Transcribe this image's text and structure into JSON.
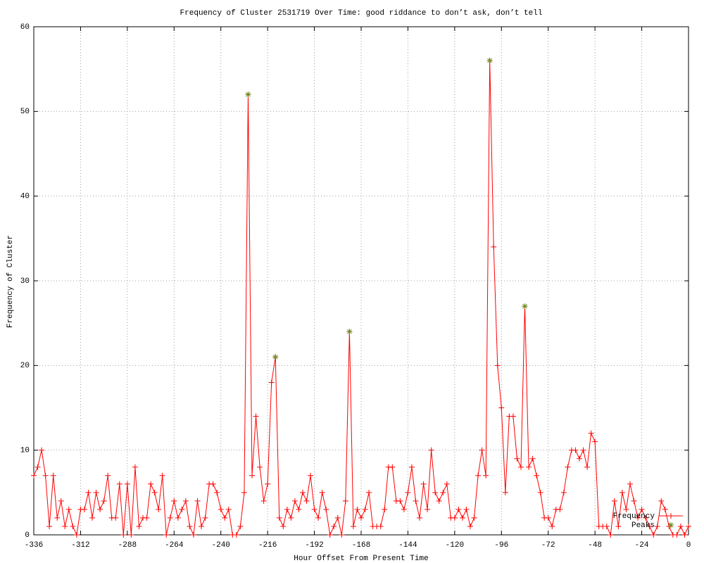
{
  "chart_data": {
    "type": "line",
    "title": "Frequency of Cluster 2531719 Over Time: good riddance to don’t ask, don’t tell",
    "x_label": "Hour Offset From Present Time",
    "y_label": "Frequency of Cluster",
    "xlim": [
      -336,
      0
    ],
    "ylim": [
      0,
      60
    ],
    "xticks": [
      -336,
      -312,
      -288,
      -264,
      -240,
      -216,
      -192,
      -168,
      -144,
      -120,
      -96,
      -72,
      -48,
      -24,
      0
    ],
    "yticks": [
      0,
      10,
      20,
      30,
      40,
      50,
      60
    ],
    "grid": true,
    "legend": "bottom-right",
    "series": [
      {
        "name": "Frequency",
        "color": "#ff0000",
        "marker": "plus",
        "x": [
          -336,
          -334,
          -332,
          -330,
          -328,
          -326,
          -324,
          -322,
          -320,
          -318,
          -316,
          -314,
          -312,
          -310,
          -308,
          -306,
          -304,
          -302,
          -300,
          -298,
          -296,
          -294,
          -292,
          -290,
          -288,
          -286,
          -284,
          -282,
          -280,
          -278,
          -276,
          -274,
          -272,
          -270,
          -268,
          -266,
          -264,
          -262,
          -260,
          -258,
          -256,
          -254,
          -252,
          -250,
          -248,
          -246,
          -244,
          -242,
          -240,
          -238,
          -236,
          -234,
          -232,
          -230,
          -228,
          -226,
          -224,
          -222,
          -220,
          -218,
          -216,
          -214,
          -212,
          -210,
          -208,
          -206,
          -204,
          -202,
          -200,
          -198,
          -196,
          -194,
          -192,
          -190,
          -188,
          -186,
          -184,
          -182,
          -180,
          -178,
          -176,
          -174,
          -172,
          -170,
          -168,
          -166,
          -164,
          -162,
          -160,
          -158,
          -156,
          -154,
          -152,
          -150,
          -148,
          -146,
          -144,
          -142,
          -140,
          -138,
          -136,
          -134,
          -132,
          -130,
          -128,
          -126,
          -124,
          -122,
          -120,
          -118,
          -116,
          -114,
          -112,
          -110,
          -108,
          -106,
          -104,
          -102,
          -100,
          -98,
          -96,
          -94,
          -92,
          -90,
          -88,
          -86,
          -84,
          -82,
          -80,
          -78,
          -76,
          -74,
          -72,
          -70,
          -68,
          -66,
          -64,
          -62,
          -60,
          -58,
          -56,
          -54,
          -52,
          -50,
          -48,
          -46,
          -44,
          -42,
          -40,
          -38,
          -36,
          -34,
          -32,
          -30,
          -28,
          -26,
          -24,
          -22,
          -20,
          -18,
          -16,
          -14,
          -12,
          -10,
          -8,
          -6,
          -4,
          -2,
          0
        ],
        "values": [
          7,
          8,
          10,
          7,
          1,
          7,
          2,
          4,
          1,
          3,
          1,
          0,
          3,
          3,
          5,
          2,
          5,
          3,
          4,
          7,
          2,
          2,
          6,
          0,
          6,
          0,
          8,
          1,
          2,
          2,
          6,
          5,
          3,
          7,
          0,
          2,
          4,
          2,
          3,
          4,
          1,
          0,
          4,
          1,
          2,
          6,
          6,
          5,
          3,
          2,
          3,
          0,
          0,
          1,
          5,
          52,
          7,
          14,
          8,
          4,
          6,
          18,
          21,
          2,
          1,
          3,
          2,
          4,
          3,
          5,
          4,
          7,
          3,
          2,
          5,
          3,
          0,
          1,
          2,
          0,
          4,
          24,
          1,
          3,
          2,
          3,
          5,
          1,
          1,
          1,
          3,
          8,
          8,
          4,
          4,
          3,
          5,
          8,
          4,
          2,
          6,
          3,
          10,
          5,
          4,
          5,
          6,
          2,
          2,
          3,
          2,
          3,
          1,
          2,
          7,
          10,
          7,
          56,
          34,
          20,
          15,
          5,
          14,
          14,
          9,
          8,
          27,
          8,
          9,
          7,
          5,
          2,
          2,
          1,
          3,
          3,
          5,
          8,
          10,
          10,
          9,
          10,
          8,
          12,
          11,
          1,
          1,
          1,
          0,
          4,
          1,
          5,
          3,
          6,
          4,
          2,
          3,
          2,
          1,
          0,
          1,
          4,
          3,
          1,
          0,
          0,
          1,
          0,
          1
        ]
      },
      {
        "name": "Peaks",
        "color": "#6b8e23",
        "marker": "star",
        "line": false,
        "x": [
          -226,
          -212,
          -174,
          -102,
          -84
        ],
        "values": [
          52,
          21,
          24,
          56,
          27
        ]
      }
    ]
  }
}
